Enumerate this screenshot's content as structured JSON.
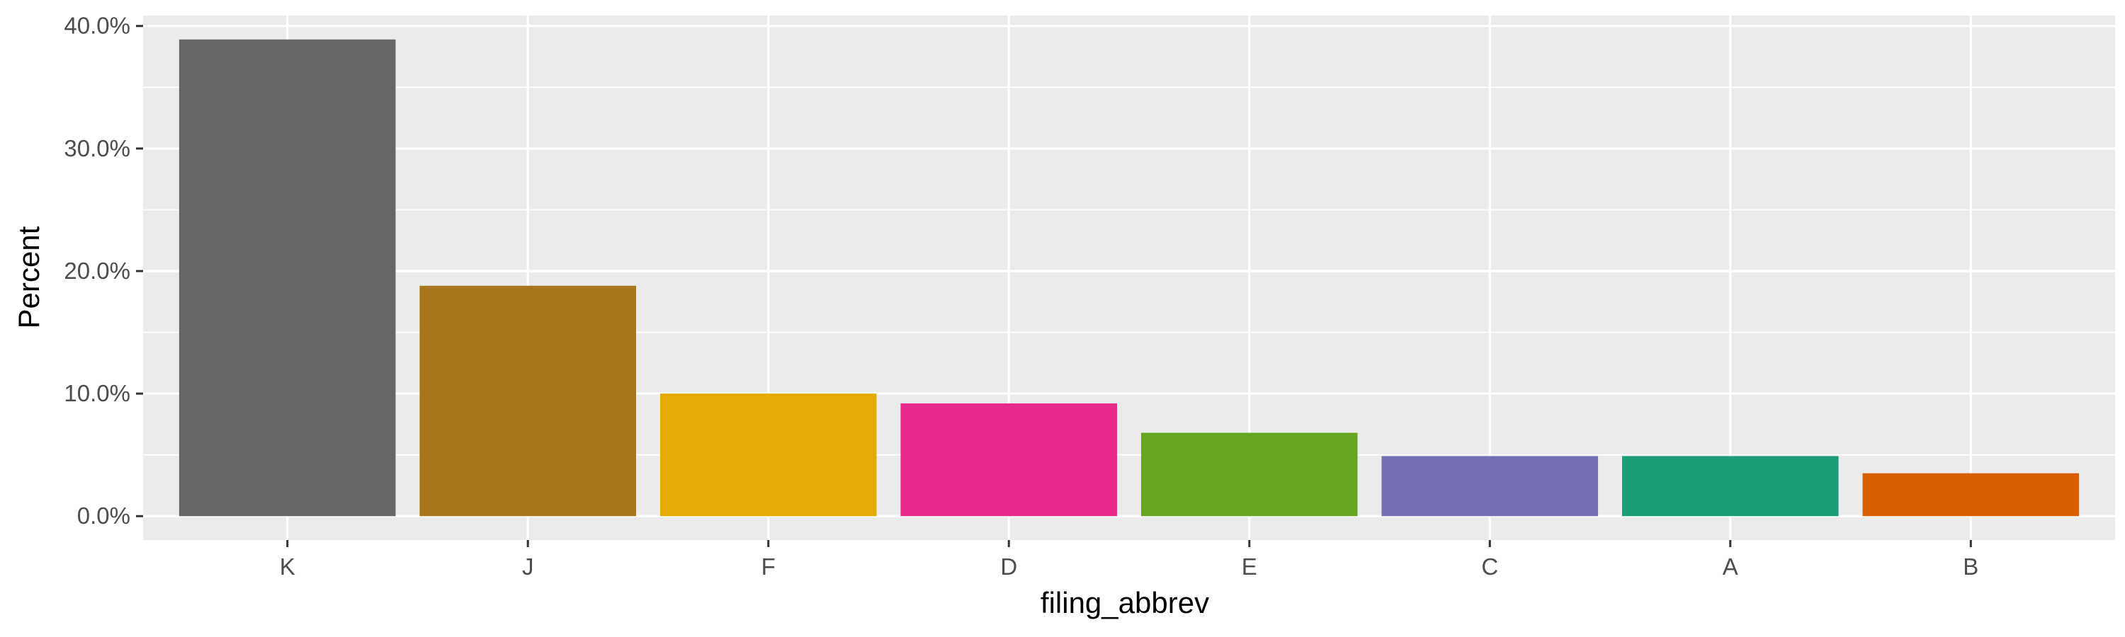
{
  "chart_data": {
    "type": "bar",
    "xlabel": "filing_abbrev",
    "ylabel": "Percent",
    "categories": [
      "K",
      "J",
      "F",
      "D",
      "E",
      "C",
      "A",
      "B"
    ],
    "values": [
      38.9,
      18.8,
      10.0,
      9.2,
      6.8,
      4.9,
      4.9,
      3.5
    ],
    "colors": [
      "#666666",
      "#A6761D",
      "#E6AB02",
      "#E7298A",
      "#66A61E",
      "#7570B3",
      "#1B9E77",
      "#D95F02"
    ],
    "ylim": [
      -1.95,
      40.85
    ],
    "y_ticks": [
      0,
      10,
      20,
      30,
      40
    ],
    "y_tick_labels": [
      "0.0%",
      "10.0%",
      "20.0%",
      "30.0%",
      "40.0%"
    ],
    "grid": true,
    "legend": "none",
    "panel_background": "#EBEBEB",
    "grid_color": "#FFFFFF"
  }
}
